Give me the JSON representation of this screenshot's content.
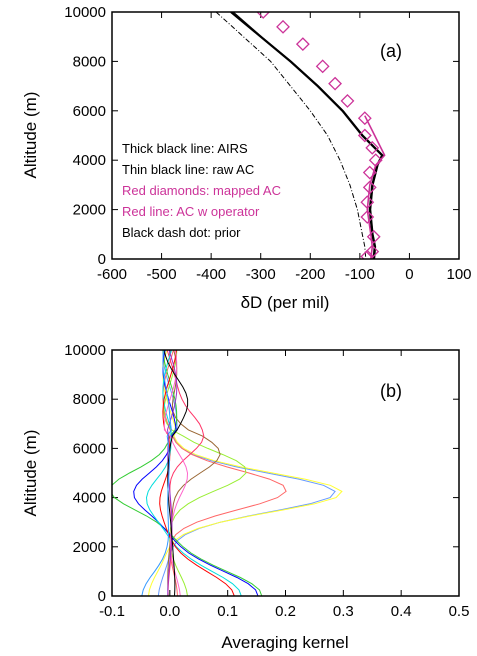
{
  "chart_data": [
    {
      "type": "line",
      "panel_label": "(a)",
      "xlabel": "δD (per mil)",
      "ylabel": "Altitude (m)",
      "xlim": [
        -600,
        100
      ],
      "ylim": [
        0,
        10000
      ],
      "xticks": [
        "-600",
        "-500",
        "-400",
        "-300",
        "-200",
        "-100",
        "0",
        "100"
      ],
      "yticks": [
        "0",
        "2000",
        "4000",
        "6000",
        "8000",
        "10000"
      ],
      "annotations": [
        {
          "text": "Thick black line: AIRS",
          "color": "#000000"
        },
        {
          "text": "Thin black line: raw AC",
          "color": "#000000"
        },
        {
          "text": "Red diamonds: mapped AC",
          "color": "#cc3399"
        },
        {
          "text": "Red line: AC w operator",
          "color": "#cc3399"
        },
        {
          "text": "Black dash dot: prior",
          "color": "#000000"
        }
      ],
      "series": [
        {
          "style": "thick-black",
          "color": "#000000",
          "points": [
            [
              -360,
              10000
            ],
            [
              -300,
              9000
            ],
            [
              -240,
              8000
            ],
            [
              -185,
              7000
            ],
            [
              -135,
              6000
            ],
            [
              -95,
              5000
            ],
            [
              -55,
              4200
            ],
            [
              -65,
              3800
            ],
            [
              -75,
              3000
            ],
            [
              -80,
              2000
            ],
            [
              -75,
              1000
            ],
            [
              -70,
              500
            ],
            [
              -72,
              0
            ]
          ]
        },
        {
          "style": "thin-black",
          "color": "#000000",
          "points": [
            [
              -355,
              10000
            ],
            [
              -298,
              9000
            ],
            [
              -238,
              8000
            ],
            [
              -183,
              7000
            ],
            [
              -133,
              6000
            ],
            [
              -93,
              5000
            ],
            [
              -53,
              4200
            ],
            [
              -63,
              3800
            ],
            [
              -73,
              3000
            ],
            [
              -78,
              2000
            ],
            [
              -73,
              1000
            ],
            [
              -68,
              500
            ],
            [
              -70,
              0
            ]
          ]
        },
        {
          "style": "dash-dot",
          "color": "#000000",
          "points": [
            [
              -390,
              10000
            ],
            [
              -335,
              9000
            ],
            [
              -280,
              8000
            ],
            [
              -240,
              7000
            ],
            [
              -200,
              6000
            ],
            [
              -165,
              5000
            ],
            [
              -140,
              4000
            ],
            [
              -120,
              3000
            ],
            [
              -105,
              2000
            ],
            [
              -95,
              1000
            ],
            [
              -90,
              500
            ],
            [
              -88,
              0
            ]
          ]
        },
        {
          "style": "red-line",
          "color": "#cc3399",
          "points": [
            [
              -90,
              5800
            ],
            [
              -70,
              5000
            ],
            [
              -50,
              4200
            ],
            [
              -68,
              3800
            ],
            [
              -80,
              3000
            ],
            [
              -85,
              2000
            ],
            [
              -78,
              1000
            ],
            [
              -75,
              500
            ],
            [
              -78,
              0
            ]
          ]
        },
        {
          "style": "diamonds",
          "color": "#cc3399",
          "points": [
            [
              -295,
              10000
            ],
            [
              -255,
              9400
            ],
            [
              -215,
              8700
            ],
            [
              -175,
              7800
            ],
            [
              -150,
              7100
            ],
            [
              -125,
              6400
            ],
            [
              -90,
              5700
            ],
            [
              -90,
              5000
            ],
            [
              -75,
              4500
            ],
            [
              -68,
              4000
            ],
            [
              -80,
              3500
            ],
            [
              -80,
              2900
            ],
            [
              -85,
              2300
            ],
            [
              -85,
              1700
            ],
            [
              -72,
              900
            ],
            [
              -75,
              300
            ],
            [
              -85,
              100
            ]
          ]
        }
      ]
    },
    {
      "type": "line",
      "panel_label": "(b)",
      "xlabel": "Averaging kernel",
      "ylabel": "Altitude (m)",
      "xlim": [
        -0.1,
        0.5
      ],
      "ylim": [
        0,
        10000
      ],
      "xticks": [
        "-0.1",
        "0.0",
        "0.1",
        "0.2",
        "0.3",
        "0.4",
        "0.5"
      ],
      "yticks": [
        "0",
        "2000",
        "4000",
        "6000",
        "8000",
        "10000"
      ],
      "series": [
        {
          "color": "#6699ff",
          "peak_altitude": 4200,
          "peak_value": 0.29,
          "bottom_value": -0.02
        },
        {
          "color": "#ffff33",
          "peak_altitude": 4200,
          "peak_value": 0.3,
          "bottom_value": -0.04
        },
        {
          "color": "#ff6666",
          "peak_altitude": 4300,
          "peak_value": 0.2,
          "bottom_value": 0.01
        },
        {
          "color": "#99ee33",
          "peak_altitude": 5100,
          "peak_value": 0.13,
          "bottom_value": 0.03
        },
        {
          "color": "#996633",
          "peak_altitude": 5800,
          "peak_value": 0.09,
          "bottom_value": 0.0
        },
        {
          "color": "#ff3366",
          "peak_altitude": 6500,
          "peak_value": 0.06,
          "bottom_value": 0.0
        },
        {
          "color": "#33cc33",
          "peak_altitude": 4300,
          "peak_value": -0.1,
          "bottom_value": 0.16
        },
        {
          "color": "#0000ff",
          "peak_altitude": 4200,
          "peak_value": -0.06,
          "bottom_value": 0.15
        },
        {
          "color": "#00dddd",
          "peak_altitude": 4000,
          "peak_value": -0.04,
          "bottom_value": 0.12
        },
        {
          "color": "#ff0000",
          "peak_altitude": 3900,
          "peak_value": -0.02,
          "bottom_value": 0.11
        },
        {
          "color": "#ff66cc",
          "peak_altitude": 5000,
          "peak_value": 0.03,
          "bottom_value": 0.02
        },
        {
          "color": "#9933cc",
          "peak_altitude": 4000,
          "peak_value": 0.0,
          "bottom_value": 0.0
        },
        {
          "color": "#000000",
          "peak_altitude": 8000,
          "peak_value": 0.02,
          "bottom_value": 0.01
        },
        {
          "color": "#3399ff",
          "peak_altitude": 7000,
          "peak_value": -0.01,
          "bottom_value": -0.05
        }
      ]
    }
  ]
}
